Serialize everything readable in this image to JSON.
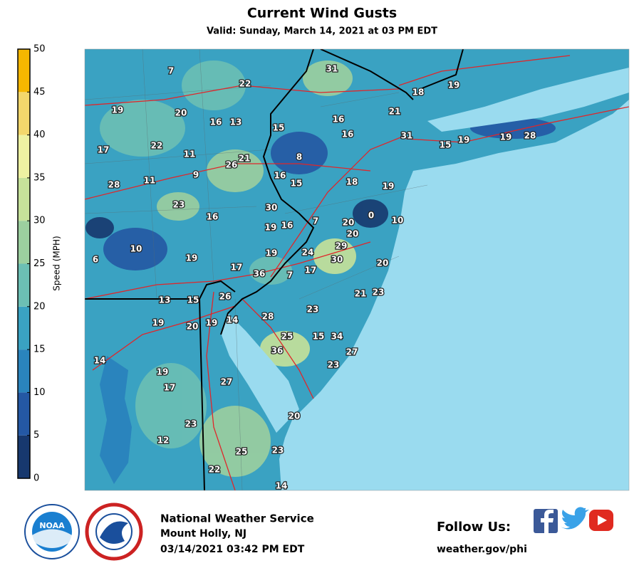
{
  "header": {
    "title": "Current Wind Gusts",
    "subtitle": "Valid: Sunday, March 14, 2021 at 03 PM EDT"
  },
  "colorbar": {
    "label": "Speed (MPH)",
    "ticks": [
      0,
      5,
      10,
      15,
      20,
      25,
      30,
      35,
      40,
      45,
      50
    ],
    "colors": [
      "#17386e",
      "#2458a4",
      "#2a84bd",
      "#3aa2c2",
      "#6cbfb4",
      "#9ccf9f",
      "#c6e29a",
      "#eef2a2",
      "#f3d76c",
      "#f5b700"
    ]
  },
  "stations": [
    7,
    31,
    22,
    18,
    19,
    19,
    20,
    16,
    13,
    16,
    21,
    15,
    16,
    31,
    15,
    19,
    19,
    28,
    17,
    22,
    11,
    21,
    26,
    8,
    9,
    16,
    15,
    18,
    19,
    28,
    11,
    23,
    30,
    16,
    0,
    10,
    20,
    19,
    16,
    7,
    20,
    29,
    10,
    19,
    24,
    6,
    19,
    30,
    20,
    17,
    36,
    7,
    17,
    21,
    23,
    13,
    15,
    26,
    23,
    28,
    14,
    19,
    20,
    19,
    25,
    15,
    34,
    27,
    36,
    14,
    23,
    19,
    17,
    27,
    20,
    23,
    12,
    25,
    23,
    22,
    14
  ],
  "footer": {
    "office": "National Weather Service",
    "location": "Mount Holly, NJ",
    "issued": "03/14/2021 03:42 PM EDT",
    "follow": "Follow Us:",
    "website": "weather.gov/phi",
    "logo": "NOAA"
  }
}
